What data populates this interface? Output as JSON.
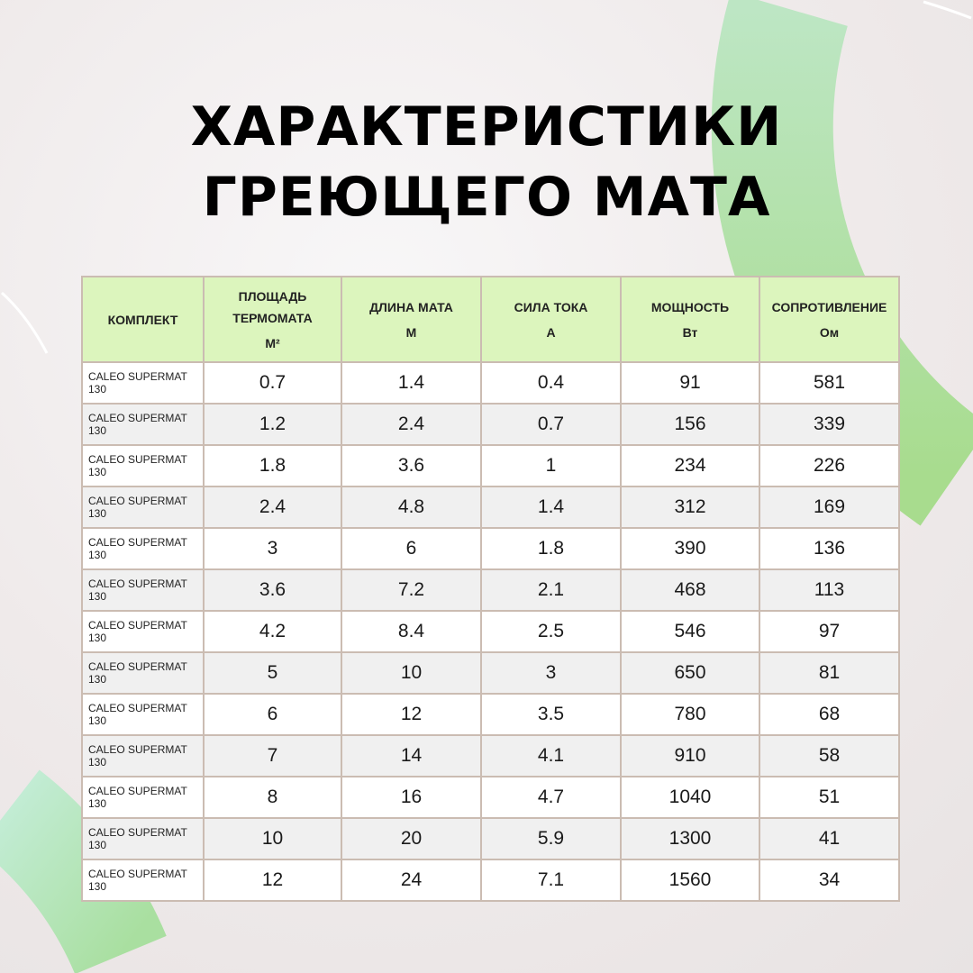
{
  "title_lines": [
    "ХАРАКТЕРИСТИКИ",
    "ГРЕЮЩЕГО МАТА"
  ],
  "colors": {
    "accent_green": "#b5e2b2",
    "header_bg": "#dcf5bd",
    "border": "#cbbcb2"
  },
  "table": {
    "headers": [
      {
        "label": "КОМПЛЕКТ",
        "unit": ""
      },
      {
        "label": "ПЛОЩАДЬ ТЕРМОМАТА",
        "unit": "М²"
      },
      {
        "label": "ДЛИНА МАТА",
        "unit": "М"
      },
      {
        "label": "СИЛА ТОКА",
        "unit": "А"
      },
      {
        "label": "МОЩНОСТЬ",
        "unit": "Вт"
      },
      {
        "label": "СОПРОТИВЛЕНИЕ",
        "unit": "Ом"
      }
    ],
    "rows": [
      [
        "CALEO SUPERMAT 130",
        "0.7",
        "1.4",
        "0.4",
        "91",
        "581"
      ],
      [
        "CALEO SUPERMAT 130",
        "1.2",
        "2.4",
        "0.7",
        "156",
        "339"
      ],
      [
        "CALEO SUPERMAT 130",
        "1.8",
        "3.6",
        "1",
        "234",
        "226"
      ],
      [
        "CALEO SUPERMAT 130",
        "2.4",
        "4.8",
        "1.4",
        "312",
        "169"
      ],
      [
        "CALEO SUPERMAT 130",
        "3",
        "6",
        "1.8",
        "390",
        "136"
      ],
      [
        "CALEO SUPERMAT 130",
        "3.6",
        "7.2",
        "2.1",
        "468",
        "113"
      ],
      [
        "CALEO SUPERMAT 130",
        "4.2",
        "8.4",
        "2.5",
        "546",
        "97"
      ],
      [
        "CALEO SUPERMAT 130",
        "5",
        "10",
        "3",
        "650",
        "81"
      ],
      [
        "CALEO SUPERMAT 130",
        "6",
        "12",
        "3.5",
        "780",
        "68"
      ],
      [
        "CALEO SUPERMAT 130",
        "7",
        "14",
        "4.1",
        "910",
        "58"
      ],
      [
        "CALEO SUPERMAT 130",
        "8",
        "16",
        "4.7",
        "1040",
        "51"
      ],
      [
        "CALEO SUPERMAT 130",
        "10",
        "20",
        "5.9",
        "1300",
        "41"
      ],
      [
        "CALEO SUPERMAT 130",
        "12",
        "24",
        "7.1",
        "1560",
        "34"
      ]
    ]
  }
}
